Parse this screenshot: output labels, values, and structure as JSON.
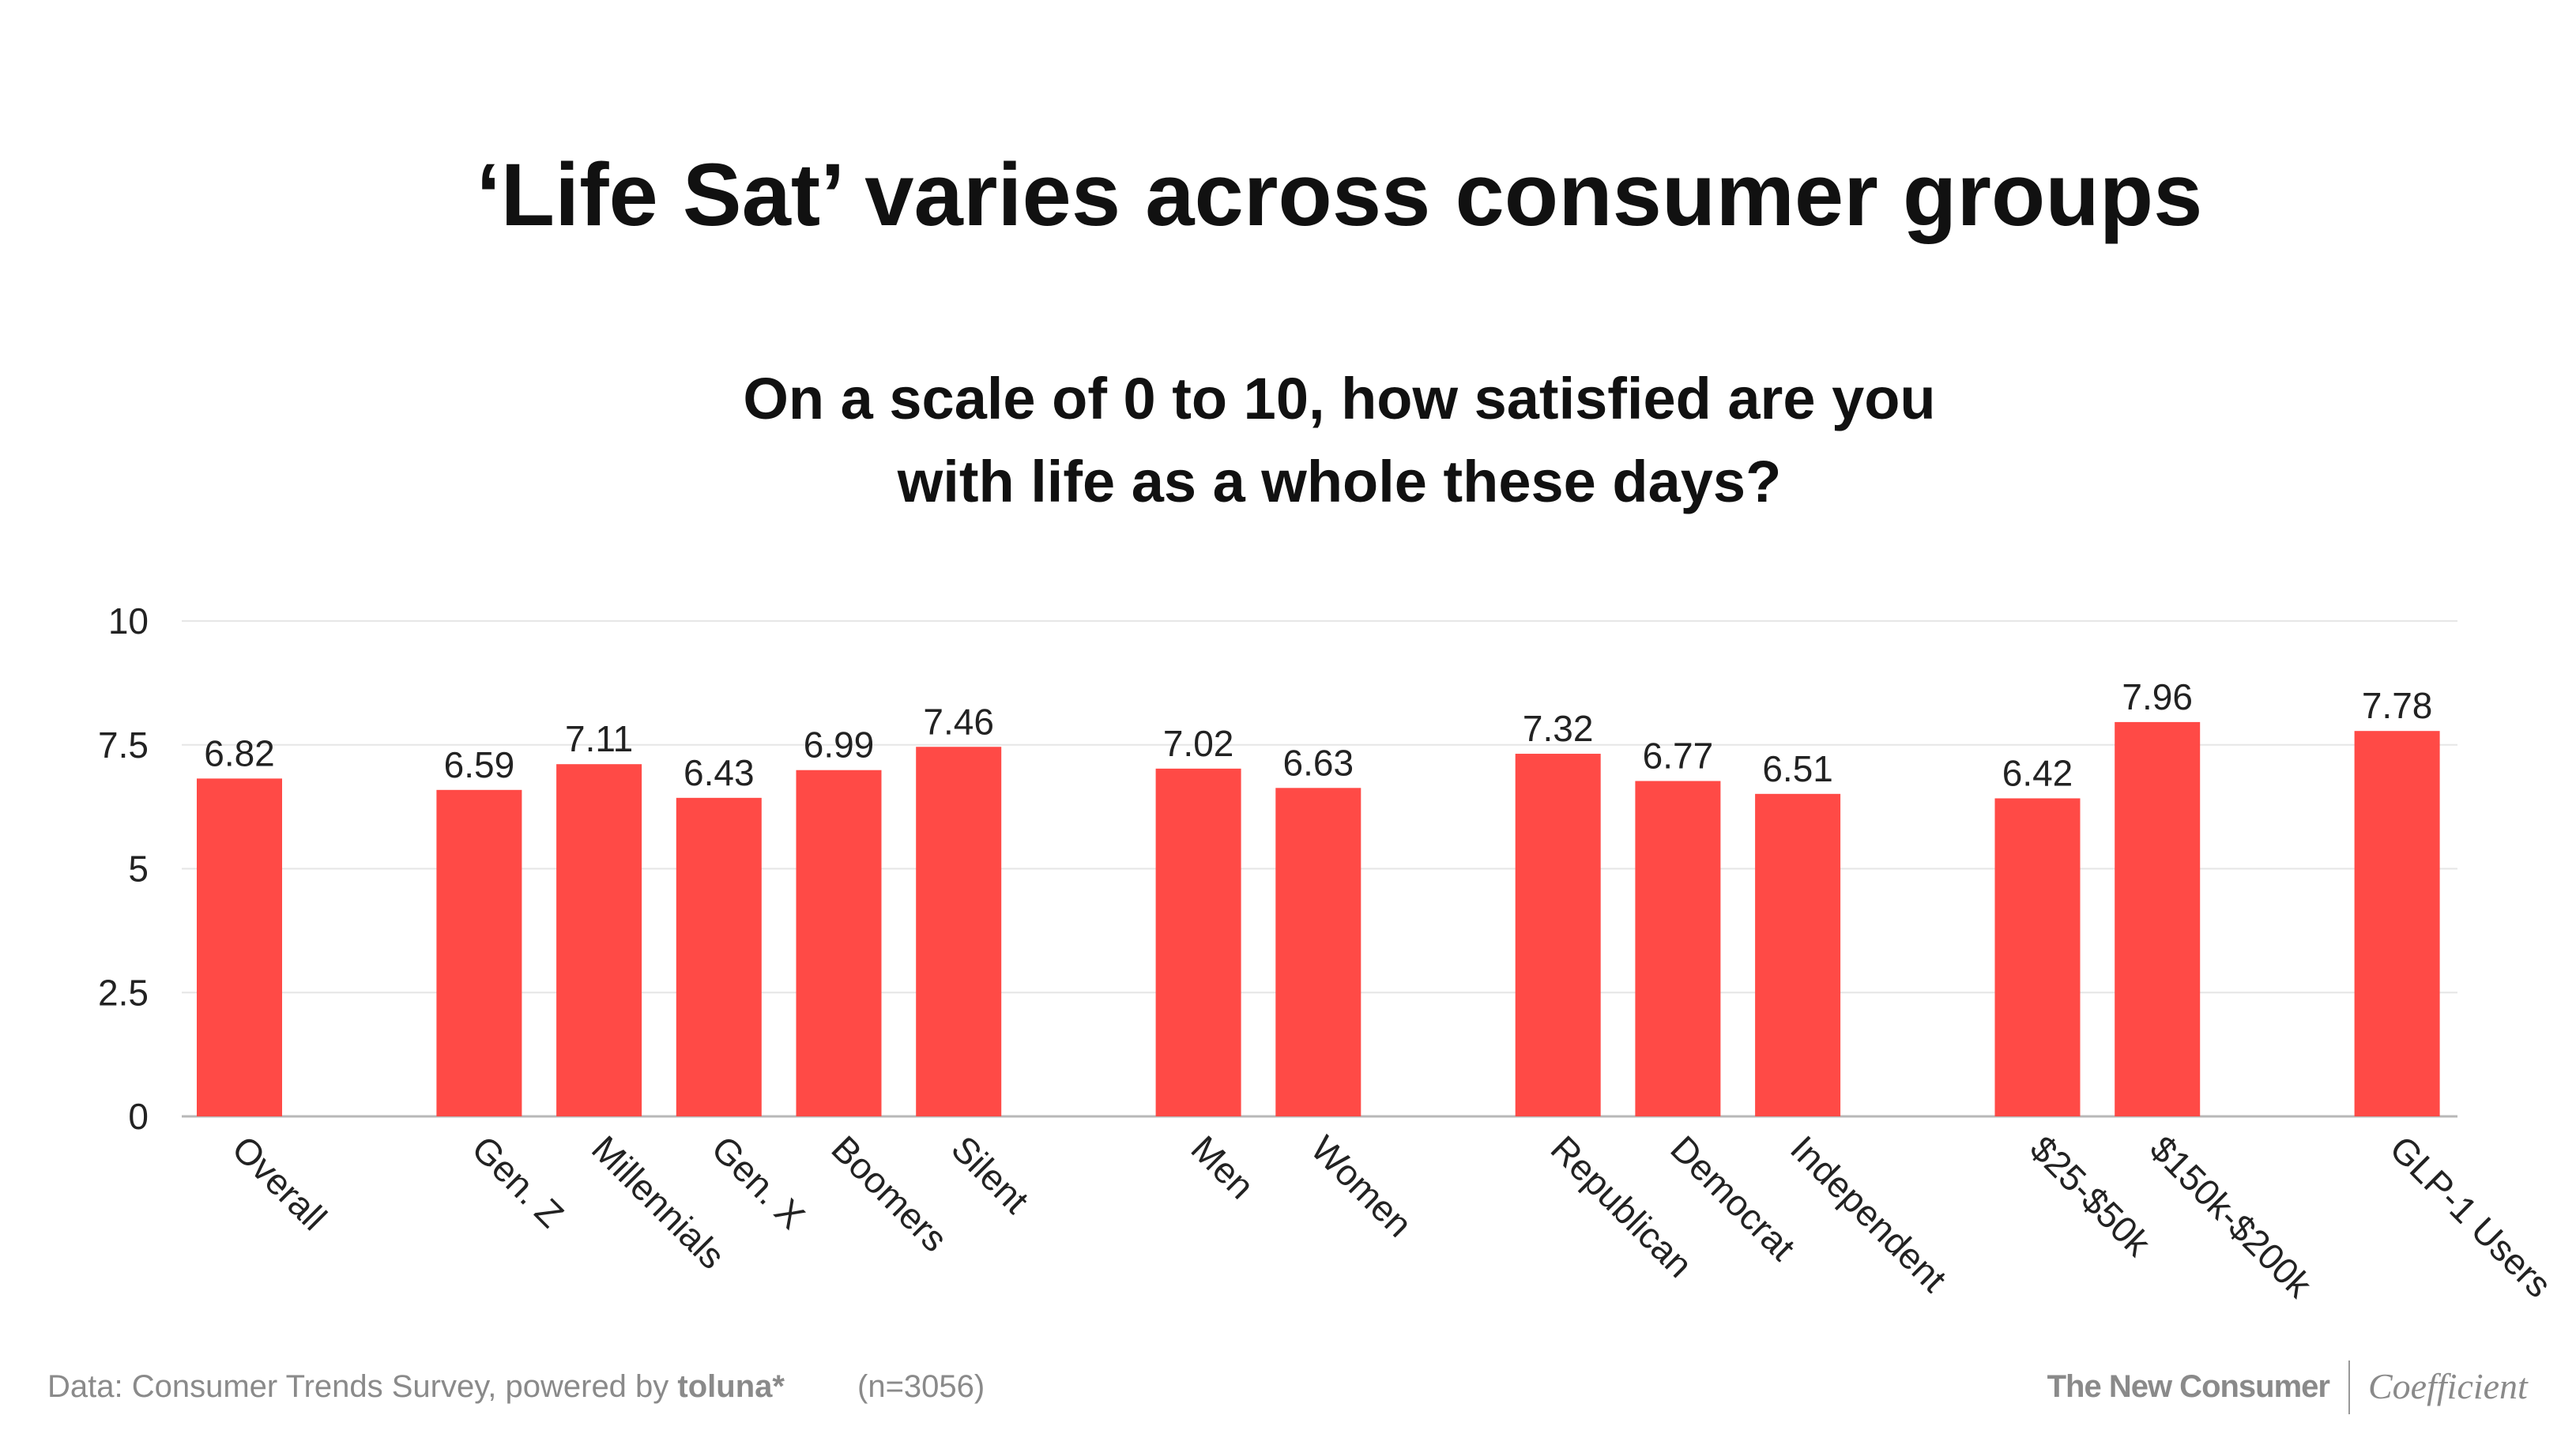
{
  "chart_data": {
    "type": "bar",
    "title": "‘Life Sat’ varies across consumer groups",
    "subtitle": [
      "On a scale of 0 to 10, how satisfied are you",
      "with life as a whole these days?"
    ],
    "xlabel": "",
    "ylabel": "",
    "ylim": [
      0,
      10
    ],
    "yticks": [
      "0",
      "2.5",
      "5",
      "7.5",
      "10"
    ],
    "ytick_values": [
      0,
      2.5,
      5,
      7.5,
      10
    ],
    "grid": true,
    "bar_color": "#ff4a46",
    "categories": [
      "Overall",
      "Gen. Z",
      "Millennials",
      "Gen. X",
      "Boomers",
      "Silent",
      "Men",
      "Women",
      "Republican",
      "Democrat",
      "Independent",
      "$25-$50k",
      "$150k-$200k",
      "GLP-1 Users"
    ],
    "values": [
      6.82,
      6.59,
      7.11,
      6.43,
      6.99,
      7.46,
      7.02,
      6.63,
      7.32,
      6.77,
      6.51,
      6.42,
      7.96,
      7.78
    ],
    "value_labels": [
      "6.82",
      "6.59",
      "7.11",
      "6.43",
      "6.99",
      "7.46",
      "7.02",
      "6.63",
      "7.32",
      "6.77",
      "6.51",
      "6.42",
      "7.96",
      "7.78"
    ],
    "groups": [
      [
        0
      ],
      [
        1,
        2,
        3,
        4,
        5
      ],
      [
        6,
        7
      ],
      [
        8,
        9,
        10
      ],
      [
        11,
        12
      ],
      [
        13
      ]
    ]
  },
  "footer": {
    "source": "Data: Consumer Trends Survey, powered by ",
    "source_brand": "toluna*",
    "sample": "(n=3056)",
    "brand_left": "The New Consumer",
    "brand_right": "Coefficient"
  }
}
